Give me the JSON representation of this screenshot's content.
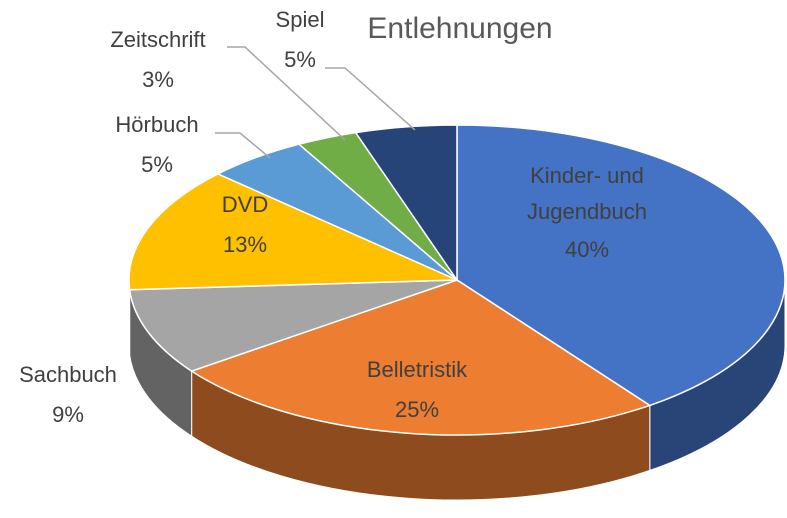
{
  "chart_data": {
    "type": "pie3d",
    "title": "Entlehnungen",
    "categories": [
      "Kinder- und Jugendbuch",
      "Belletristik",
      "Sachbuch",
      "DVD",
      "Hörbuch",
      "Zeitschrift",
      "Spiel"
    ],
    "values": [
      40,
      25,
      9,
      13,
      5,
      3,
      5
    ],
    "value_labels": [
      "40%",
      "25%",
      "9%",
      "13%",
      "5%",
      "3%",
      "5%"
    ],
    "colors": [
      "#4472c4",
      "#ed7d31",
      "#a5a5a5",
      "#ffc000",
      "#5b9bd5",
      "#70ad47",
      "#264478"
    ]
  }
}
